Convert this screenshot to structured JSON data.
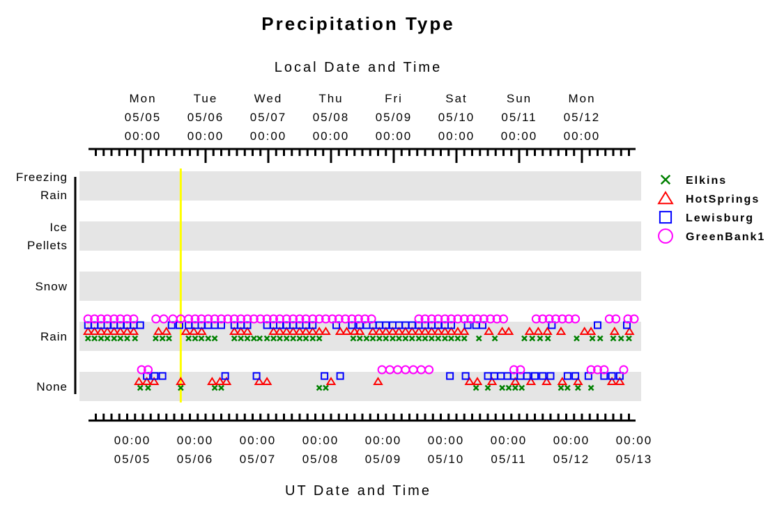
{
  "chart_data": {
    "type": "scatter",
    "title": "Precipitation Type",
    "top_axis_title": "Local Date and Time",
    "bottom_axis_title": "UT Date and Time",
    "categories": [
      "None",
      "Rain",
      "Snow",
      "Ice Pellets",
      "Freezing Rain"
    ],
    "category_labels": [
      [
        "None"
      ],
      [
        "Rain"
      ],
      [
        "Snow"
      ],
      [
        "Ice",
        "Pellets"
      ],
      [
        "Freezing",
        "Rain"
      ]
    ],
    "local_ticks": [
      {
        "day": "Mon",
        "date": "05/05",
        "time": "00:00",
        "ut_hour": 4
      },
      {
        "day": "Tue",
        "date": "05/06",
        "time": "00:00",
        "ut_hour": 28
      },
      {
        "day": "Wed",
        "date": "05/07",
        "time": "00:00",
        "ut_hour": 52
      },
      {
        "day": "Thu",
        "date": "05/08",
        "time": "00:00",
        "ut_hour": 76
      },
      {
        "day": "Fri",
        "date": "05/09",
        "time": "00:00",
        "ut_hour": 100
      },
      {
        "day": "Sat",
        "date": "05/10",
        "time": "00:00",
        "ut_hour": 124
      },
      {
        "day": "Sun",
        "date": "05/11",
        "time": "00:00",
        "ut_hour": 148
      },
      {
        "day": "Mon",
        "date": "05/12",
        "time": "00:00",
        "ut_hour": 172
      }
    ],
    "ut_ticks": [
      {
        "time": "00:00",
        "date": "05/05",
        "ut_hour": 0
      },
      {
        "time": "00:00",
        "date": "05/06",
        "ut_hour": 24
      },
      {
        "time": "00:00",
        "date": "05/07",
        "ut_hour": 48
      },
      {
        "time": "00:00",
        "date": "05/08",
        "ut_hour": 72
      },
      {
        "time": "00:00",
        "date": "05/09",
        "ut_hour": 96
      },
      {
        "time": "00:00",
        "date": "05/10",
        "ut_hour": 120
      },
      {
        "time": "00:00",
        "date": "05/11",
        "ut_hour": 144
      },
      {
        "time": "00:00",
        "date": "05/12",
        "ut_hour": 168
      },
      {
        "time": "00:00",
        "date": "05/13",
        "ut_hour": 192
      }
    ],
    "x_unit": "UT hours since 05/05 00:00",
    "xlim": [
      -17,
      192
    ],
    "marker_line_ut_hour": 18.5,
    "marker_line_color": "#ffff00",
    "series": [
      {
        "name": "Elkins",
        "marker": "x",
        "color": "#008000",
        "rain": [
          -17,
          -14.5,
          -12,
          -9.6,
          -7,
          -4.6,
          -2,
          1,
          8.9,
          11.5,
          14,
          21.5,
          24,
          26.4,
          29,
          31.5,
          39,
          41.5,
          44,
          46.5,
          48.7,
          51.5,
          54,
          56.4,
          59,
          61.5,
          64,
          66.4,
          69,
          71.5,
          84.5,
          87,
          89.6,
          92,
          94.5,
          97,
          99.6,
          102,
          104.5,
          107,
          109.6,
          112,
          114.5,
          117,
          119.6,
          122,
          124.5,
          127,
          132.6,
          138.7,
          150,
          153,
          156,
          159,
          170,
          176,
          179,
          184,
          187,
          190
        ],
        "none": [
          3,
          6,
          18.5,
          31.5,
          34,
          71.5,
          74,
          131.5,
          136,
          141.5,
          144,
          146.5,
          149,
          164,
          166.5,
          170.5,
          175.5
        ],
        "snow": [],
        "ice": [],
        "frz": []
      },
      {
        "name": "HotSprings",
        "marker": "triangle",
        "color": "#ff0000",
        "rain": [
          -17,
          -14.5,
          -12,
          -9.6,
          -7,
          -4.6,
          -2,
          0.5,
          10,
          13,
          20.5,
          23.5,
          26.5,
          39,
          41.5,
          44,
          54,
          56.4,
          59,
          61.5,
          64,
          66.4,
          69,
          71.5,
          74,
          79.5,
          82,
          85,
          87,
          92,
          94.5,
          97,
          99.6,
          102,
          104.5,
          107,
          109.6,
          112,
          114.5,
          117,
          119.6,
          122,
          124.5,
          127,
          136.4,
          141.5,
          144,
          152,
          155.3,
          158.8,
          164,
          173,
          175.5,
          184.5,
          190.2
        ],
        "none": [
          2.5,
          5.5,
          8.3,
          18.5,
          30.5,
          33.5,
          36,
          48.5,
          51.5,
          76,
          94,
          129,
          132,
          137.6,
          146.5,
          152.5,
          158.5,
          164.5,
          170.5,
          183.5,
          186.5
        ],
        "snow": [],
        "ice": [],
        "frz": []
      },
      {
        "name": "Lewisburg",
        "marker": "square",
        "color": "#0000ff",
        "rain": [
          -17,
          -14.5,
          -12,
          -9.6,
          -7,
          -4.6,
          -2,
          0.5,
          3,
          15,
          18,
          21.5,
          24,
          26.4,
          29,
          31.5,
          34,
          39,
          41.5,
          44,
          51.5,
          54,
          56.4,
          59,
          61.5,
          64,
          66.4,
          69,
          78,
          84,
          87,
          89.6,
          92,
          94.5,
          97,
          99.6,
          102,
          104.5,
          107,
          109.6,
          112,
          114.5,
          117,
          119.6,
          122,
          128.3,
          131.5,
          134,
          160.5,
          178,
          189.2
        ],
        "none": [
          5.5,
          8.5,
          11.5,
          35.5,
          47.5,
          73.5,
          79.5,
          121.5,
          127.5,
          136,
          138.5,
          141,
          143.5,
          146,
          148.5,
          151,
          154,
          157,
          160,
          166.5,
          169.5,
          174.5,
          180.5,
          183.5,
          186.5
        ],
        "snow": [],
        "ice": [],
        "frz": []
      },
      {
        "name": "GreenBank1",
        "marker": "circle",
        "color": "#ff00ff",
        "rain": [
          -17,
          -14.5,
          -12,
          -9.6,
          -7,
          -4.6,
          -2,
          0.5,
          9,
          12,
          15.5,
          18.5,
          21.5,
          24,
          26.4,
          29,
          31.5,
          34,
          36.5,
          39,
          41.5,
          44,
          46.5,
          49,
          51.5,
          54,
          56.4,
          59,
          61.5,
          64,
          66.4,
          69,
          71.5,
          74,
          76.5,
          79,
          81.5,
          84,
          86.5,
          89,
          91.5,
          109.6,
          112,
          114.5,
          117,
          119.6,
          122,
          124.5,
          127,
          129.5,
          132,
          134.5,
          137,
          139.5,
          142,
          154.5,
          157,
          159.5,
          162,
          164.5,
          167,
          169.5,
          182.5,
          185,
          192,
          189.6
        ],
        "none": [
          3.5,
          6,
          95.5,
          98.5,
          101.5,
          104.5,
          107.5,
          110.5,
          113.5,
          146,
          148.5,
          175.5,
          178,
          180.5,
          188
        ],
        "snow": [],
        "ice": [],
        "frz": []
      }
    ]
  }
}
